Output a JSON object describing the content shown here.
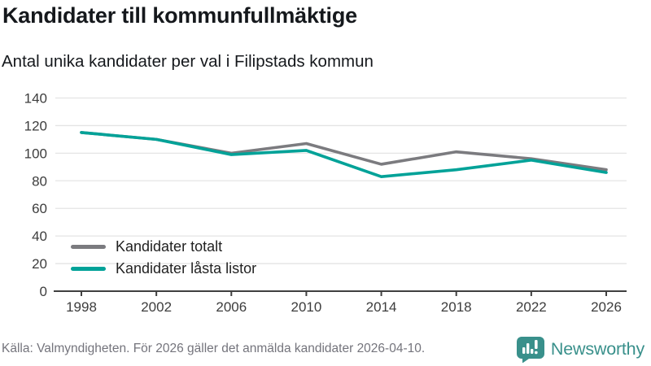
{
  "header": {
    "title": "Kandidater till kommunfullmäktige",
    "subtitle": "Antal unika kandidater per val i Filipstads kommun"
  },
  "chart_data": {
    "type": "line",
    "x": [
      1998,
      2002,
      2006,
      2010,
      2014,
      2018,
      2022,
      2026
    ],
    "series": [
      {
        "name": "Kandidater totalt",
        "color": "#7b7b7f",
        "values": [
          115,
          110,
          100,
          107,
          92,
          101,
          96,
          88
        ]
      },
      {
        "name": "Kandidater låsta listor",
        "color": "#00a298",
        "values": [
          115,
          110,
          99,
          102,
          83,
          88,
          95,
          86
        ]
      }
    ],
    "title": "Kandidater till kommunfullmäktige",
    "subtitle": "Antal unika kandidater per val i Filipstads kommun",
    "xlabel": "",
    "ylabel": "",
    "ylim": [
      0,
      140
    ],
    "ytick_step": 20,
    "grid": "horizontal-only",
    "gridline_color": "#e4e4e4",
    "axis_color": "#404040",
    "tick_label_color": "#3d3d3d",
    "legend_position": "inside-bottom-left"
  },
  "footer": {
    "source": "Källa: Valmyndigheten. För 2026 gäller det anmälda kandidater 2026-04-10.",
    "brand": "Newsworthy",
    "brand_color": "#39908b"
  }
}
